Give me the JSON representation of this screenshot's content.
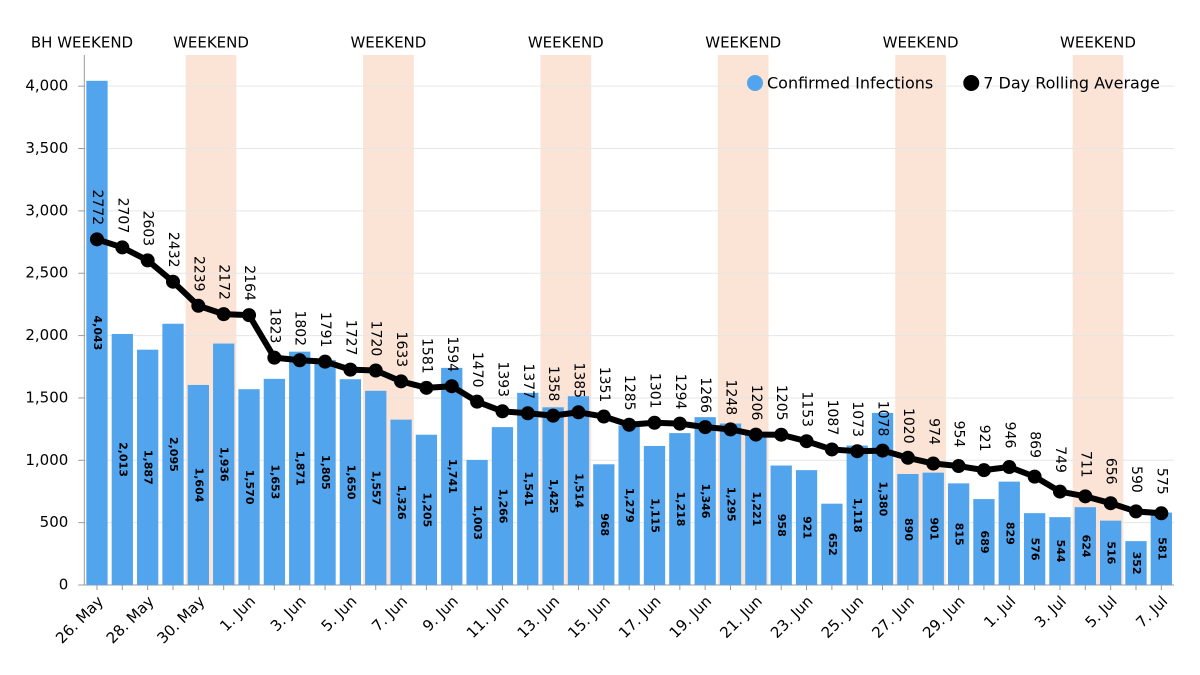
{
  "chart_data": {
    "type": "bar",
    "categories": [
      "26. May",
      null,
      "28. May",
      null,
      "30. May",
      null,
      "1. Jun",
      null,
      "3. Jun",
      null,
      "5. Jun",
      null,
      "7. Jun",
      null,
      "9. Jun",
      null,
      "11. Jun",
      null,
      "13. Jun",
      null,
      "15. Jun",
      null,
      "17. Jun",
      null,
      "19. Jun",
      null,
      "21. Jun",
      null,
      "23. Jun",
      null,
      "25. Jun",
      null,
      "27. Jun",
      null,
      "29. Jun",
      null,
      "1. Jul",
      null,
      "3. Jul",
      null,
      "5. Jul",
      null,
      "7. Jul"
    ],
    "series": [
      {
        "name": "Confirmed Infections",
        "type": "bar",
        "color": "#52a4ec",
        "values": [
          4043,
          2013,
          1887,
          2095,
          1604,
          1936,
          1570,
          1653,
          1871,
          1805,
          1650,
          1557,
          1326,
          1205,
          1741,
          1003,
          1266,
          1541,
          1425,
          1514,
          968,
          1279,
          1115,
          1218,
          1346,
          1295,
          1221,
          958,
          921,
          652,
          1118,
          1380,
          890,
          901,
          815,
          689,
          829,
          576,
          544,
          624,
          516,
          352,
          581
        ],
        "value_labels": [
          "4,043",
          "2,013",
          "1,887",
          "2,095",
          "1,604",
          "1,936",
          "1,570",
          "1,653",
          "1,871",
          "1,805",
          "1,650",
          "1,557",
          "1,326",
          "1,205",
          "1,741",
          "1,003",
          "1,266",
          "1,541",
          "1,425",
          "1,514",
          "968",
          "1,279",
          "1,115",
          "1,218",
          "1,346",
          "1,295",
          "1,221",
          "958",
          "921",
          "652",
          "1,118",
          "1,380",
          "890",
          "901",
          "815",
          "689",
          "829",
          "576",
          "544",
          "624",
          "516",
          "352",
          "581"
        ]
      },
      {
        "name": "7 Day Rolling Average",
        "type": "line",
        "color": "#000000",
        "values": [
          2772,
          2707,
          2603,
          2432,
          2239,
          2172,
          2164,
          1823,
          1802,
          1791,
          1727,
          1720,
          1633,
          1581,
          1594,
          1470,
          1393,
          1377,
          1358,
          1385,
          1351,
          1285,
          1301,
          1294,
          1266,
          1248,
          1206,
          1205,
          1153,
          1087,
          1073,
          1078,
          1020,
          974,
          954,
          921,
          946,
          869,
          749,
          711,
          656,
          590,
          575
        ]
      }
    ],
    "annotations": [
      "BH WEEKEND",
      "WEEKEND",
      "WEEKEND",
      "WEEKEND",
      "WEEKEND",
      "WEEKEND",
      "WEEKEND"
    ],
    "ylim": [
      0,
      4250
    ],
    "yticks": [
      0,
      500,
      {
        "value": 1000,
        "label": "1,000"
      },
      {
        "value": 1500,
        "label": "1,500"
      },
      {
        "value": 2000,
        "label": "2,000"
      },
      {
        "value": 2500,
        "label": "2,500"
      },
      {
        "value": 3000,
        "label": "3,000"
      },
      {
        "value": 3500,
        "label": "3,500"
      },
      {
        "value": 4000,
        "label": "4,000"
      }
    ],
    "grid": true,
    "legend": "top-right"
  }
}
